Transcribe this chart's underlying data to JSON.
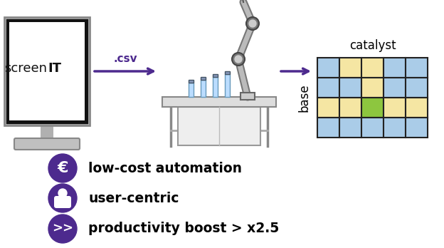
{
  "bg_color": "#ffffff",
  "purple": "#4d2a8e",
  "arrow_color": "#4d2a8e",
  "grid_blue": "#aacce8",
  "grid_yellow": "#f5e6a3",
  "grid_green": "#8dc63f",
  "catalyst_label": "catalyst",
  "base_label": "base",
  "csv_text": ".csv",
  "monitor_text1": "screen",
  "monitor_text2": "IT",
  "bullet_labels": [
    "low-cost automation",
    "user-centric",
    "productivity boost > x2.5"
  ],
  "cell_colors": [
    [
      "blue",
      "yellow",
      "yellow",
      "blue",
      "blue"
    ],
    [
      "blue",
      "blue",
      "yellow",
      "blue",
      "blue"
    ],
    [
      "yellow",
      "yellow",
      "green",
      "yellow",
      "yellow"
    ],
    [
      "blue",
      "blue",
      "blue",
      "blue",
      "blue"
    ]
  ]
}
